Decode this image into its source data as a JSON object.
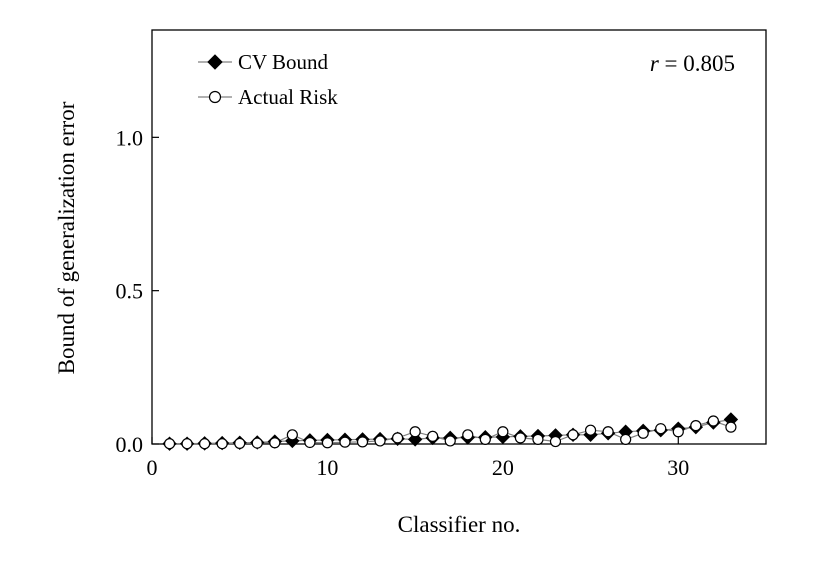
{
  "chart_data": {
    "type": "line",
    "xlabel": "Classifier no.",
    "ylabel": "Bound of generalization error",
    "xlim": [
      0,
      35
    ],
    "ylim": [
      0,
      1.35
    ],
    "xticks": [
      0,
      10,
      20,
      30
    ],
    "xtick_labels": [
      "0",
      "10",
      "20",
      "30"
    ],
    "yticks": [
      0.0,
      0.5,
      1.0
    ],
    "ytick_labels": [
      "0.0",
      "0.5",
      "1.0"
    ],
    "grid": false,
    "legend_position": "top-left",
    "annotation": {
      "italic": "r",
      "rest": " = 0.805"
    },
    "x": [
      1,
      2,
      3,
      4,
      5,
      6,
      7,
      8,
      9,
      10,
      11,
      12,
      13,
      14,
      15,
      16,
      17,
      18,
      19,
      20,
      21,
      22,
      23,
      24,
      25,
      26,
      27,
      28,
      29,
      30,
      31,
      32,
      33
    ],
    "series": [
      {
        "name": "CV Bound",
        "marker": "filled-diamond",
        "color": "#000000",
        "line_color": "#808080",
        "values": [
          0.001,
          0.001,
          0.002,
          0.003,
          0.004,
          0.005,
          0.008,
          0.01,
          0.012,
          0.013,
          0.014,
          0.015,
          0.016,
          0.017,
          0.015,
          0.02,
          0.02,
          0.021,
          0.022,
          0.023,
          0.025,
          0.026,
          0.028,
          0.03,
          0.03,
          0.035,
          0.04,
          0.043,
          0.045,
          0.05,
          0.055,
          0.07,
          0.08
        ]
      },
      {
        "name": "Actual Risk",
        "marker": "open-circle",
        "color": "#000000",
        "line_color": "#808080",
        "values": [
          0.001,
          0.001,
          0.001,
          0.001,
          0.002,
          0.003,
          0.004,
          0.03,
          0.005,
          0.004,
          0.006,
          0.007,
          0.01,
          0.02,
          0.04,
          0.025,
          0.01,
          0.03,
          0.015,
          0.04,
          0.02,
          0.015,
          0.008,
          0.03,
          0.045,
          0.04,
          0.015,
          0.035,
          0.05,
          0.04,
          0.06,
          0.075,
          0.055
        ]
      }
    ]
  }
}
